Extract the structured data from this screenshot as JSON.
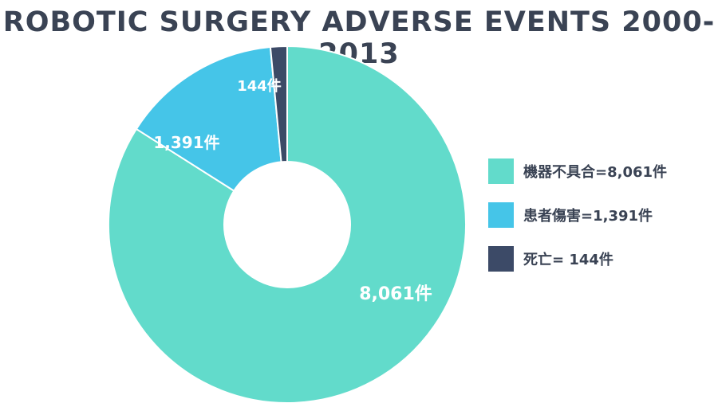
{
  "title": "ROBOTIC SURGERY ADVERSE EVENTS 2000-2013",
  "colors": {
    "device_malfunction": "#62dbcb",
    "patient_injury": "#45c5e8",
    "death": "#3c4a67",
    "text": "#3a4354"
  },
  "chart_data": {
    "type": "pie",
    "title": "ROBOTIC SURGERY ADVERSE EVENTS 2000-2013",
    "donut": true,
    "slices": [
      {
        "label": "機器不具合",
        "value": 8061,
        "display": "8,061件",
        "legend_text": "機器不具合=8,061件"
      },
      {
        "label": "患者傷害",
        "value": 1391,
        "display": "1,391件",
        "legend_text": "患者傷害=1,391件"
      },
      {
        "label": "死亡",
        "value": 144,
        "display": "144件",
        "legend_text": "死亡= 144件"
      }
    ],
    "legend_position": "right"
  }
}
